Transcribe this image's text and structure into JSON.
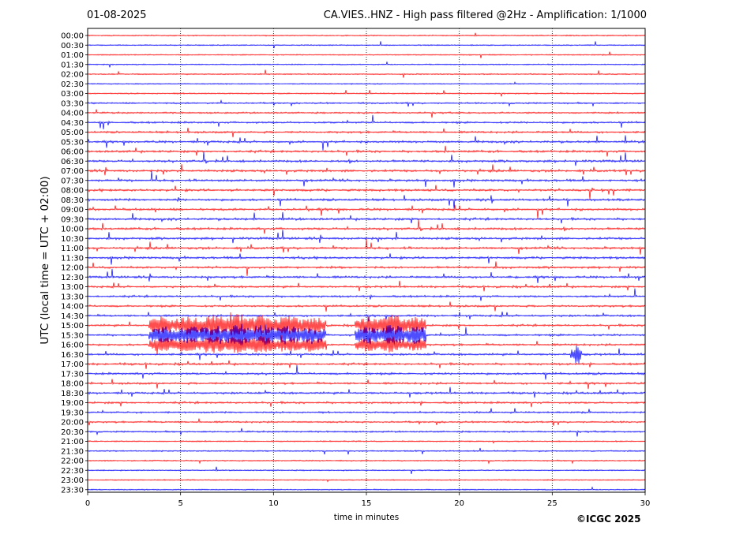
{
  "header": {
    "date": "01-08-2025",
    "title": "CA.VIES..HNZ - High pass filtered @2Hz - Amplification: 1/1000"
  },
  "footer": {
    "copyright": "©ICGC 2025"
  },
  "colors": {
    "trace_a": "#ff0000",
    "trace_b": "#0000ff",
    "grid": "#000000"
  },
  "chart_data": {
    "type": "line",
    "title": "CA.VIES..HNZ - High pass filtered @2Hz - Amplification: 1/1000",
    "xlabel": "time in minutes",
    "ylabel": "UTC (local time = UTC + 02:00)",
    "xlim": [
      0,
      30
    ],
    "x_ticks": [
      "0",
      "5",
      "10",
      "15",
      "20",
      "25",
      "30"
    ],
    "x_tick_values": [
      0,
      5,
      10,
      15,
      20,
      25,
      30
    ],
    "grid": "vertical dotted at x ticks",
    "y_labels": [
      "00:00",
      "00:30",
      "01:00",
      "01:30",
      "02:00",
      "02:30",
      "03:00",
      "03:30",
      "04:00",
      "04:30",
      "05:00",
      "05:30",
      "06:00",
      "06:30",
      "07:00",
      "07:30",
      "08:00",
      "08:30",
      "09:00",
      "09:30",
      "10:00",
      "10:30",
      "11:00",
      "11:30",
      "12:00",
      "12:30",
      "13:00",
      "13:30",
      "14:00",
      "14:30",
      "15:00",
      "15:30",
      "16:00",
      "16:30",
      "17:00",
      "17:30",
      "18:00",
      "18:30",
      "19:00",
      "19:30",
      "20:00",
      "20:30",
      "21:00",
      "21:30",
      "22:00",
      "22:30",
      "23:00",
      "23:30"
    ],
    "trace_colors_alternate": [
      "#ff0000",
      "#0000ff"
    ],
    "noise_level": [
      0.2,
      0.2,
      0.2,
      0.2,
      0.2,
      0.2,
      0.3,
      0.5,
      0.5,
      0.7,
      0.8,
      0.9,
      1.0,
      1.0,
      1.0,
      1.0,
      1.0,
      1.0,
      1.0,
      1.0,
      1.0,
      1.0,
      1.0,
      1.0,
      0.9,
      0.9,
      0.8,
      0.8,
      0.8,
      0.8,
      0.8,
      0.8,
      0.8,
      0.8,
      0.9,
      0.9,
      0.8,
      0.8,
      0.8,
      0.6,
      0.6,
      0.5,
      0.3,
      0.3,
      0.3,
      0.2,
      0.2,
      0.2
    ],
    "bursts": [
      {
        "row": 30,
        "start": 3.3,
        "end": 12.8,
        "amplitude": 1.0
      },
      {
        "row": 31,
        "start": 3.3,
        "end": 12.8,
        "amplitude": 1.0
      },
      {
        "row": 32,
        "start": 3.3,
        "end": 12.8,
        "amplitude": 0.8
      },
      {
        "row": 30,
        "start": 14.4,
        "end": 18.2,
        "amplitude": 0.9
      },
      {
        "row": 31,
        "start": 14.4,
        "end": 18.2,
        "amplitude": 1.0
      },
      {
        "row": 32,
        "start": 14.4,
        "end": 18.2,
        "amplitude": 0.7
      },
      {
        "row": 33,
        "start": 26.0,
        "end": 26.6,
        "amplitude": 1.0
      }
    ]
  }
}
